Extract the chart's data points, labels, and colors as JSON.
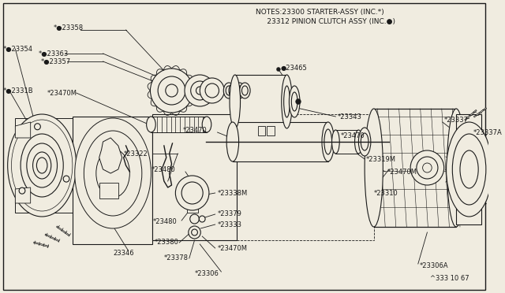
{
  "bg_color": "#f0ece0",
  "line_color": "#1a1a1a",
  "text_color": "#1a1a1a",
  "notes_line1": "NOTES:23300 STARTER-ASSY (INC.*)",
  "notes_line2": "     23312 PINION CLUTCH ASSY (INC.●)",
  "diagram_code": "^333 10 67",
  "fig_w": 6.4,
  "fig_h": 3.72,
  "dpi": 100
}
